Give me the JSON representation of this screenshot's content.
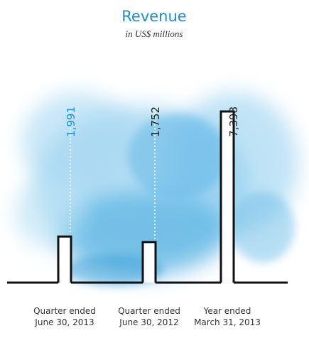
{
  "chart_data": {
    "type": "bar",
    "title": "Revenue",
    "subtitle": "in US$ millions",
    "categories": [
      [
        "Quarter ended",
        "June 30, 2013"
      ],
      [
        "Quarter ended",
        "June 30, 2012"
      ],
      [
        "Year ended",
        "March 31, 2013"
      ]
    ],
    "values": [
      1991,
      1752,
      7398
    ],
    "value_labels": [
      "1,991",
      "1,752",
      "7,398"
    ],
    "value_label_colors": [
      "#1a8fd0",
      "#222222",
      "#222222"
    ],
    "color": "#ffffff",
    "title_color": "#1a8fd0"
  }
}
